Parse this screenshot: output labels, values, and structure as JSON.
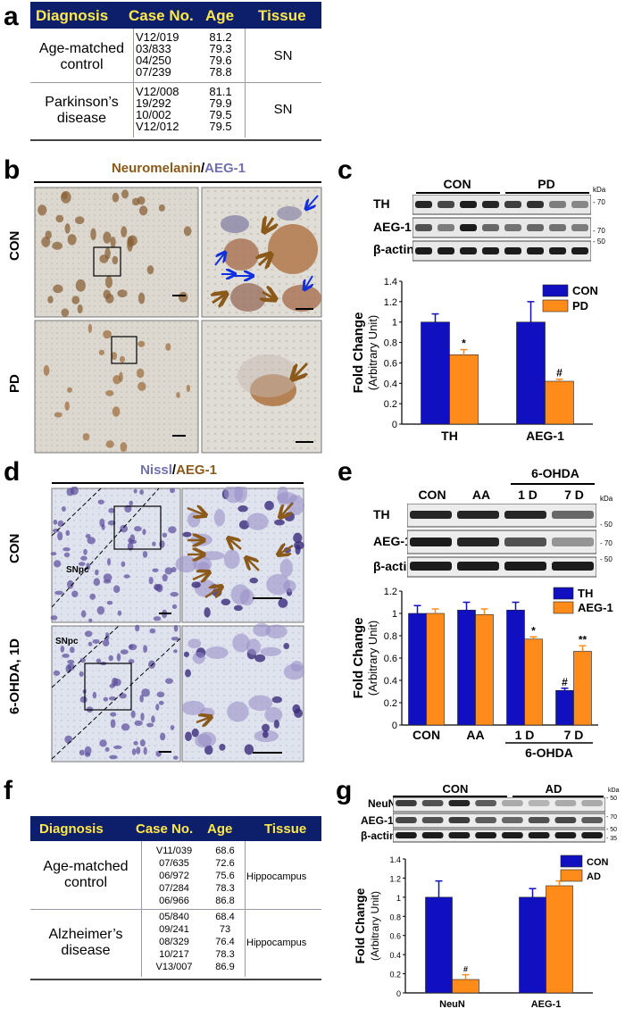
{
  "panels": {
    "a": {
      "label": "a"
    },
    "b": {
      "label": "b",
      "title_part1": "Neuromelanin",
      "title_sep": "/",
      "title_part2": "AEG-1",
      "row_con": "CON",
      "row_pd": "PD"
    },
    "c": {
      "label": "c",
      "group_con": "CON",
      "group_pd": "PD",
      "kda": "kDa",
      "rows": [
        "TH",
        "AEG-1",
        "β-actin"
      ],
      "markers": [
        "70",
        "70",
        "50"
      ]
    },
    "d": {
      "label": "d",
      "title_part1": "Nissl",
      "title_sep": "/",
      "title_part2": "AEG-1",
      "row_con": "CON",
      "row_ohda": "6-OHDA, 1D",
      "snpc": "SNpc"
    },
    "e": {
      "label": "e",
      "lanes": [
        "CON",
        "AA",
        "1 D",
        "7 D"
      ],
      "group_label": "6-OHDA",
      "kda": "kDa",
      "rows": [
        "TH",
        "AEG-1",
        "β-actin"
      ],
      "markers": [
        "50",
        "70",
        "50"
      ]
    },
    "f": {
      "label": "f"
    },
    "g": {
      "label": "g",
      "group_con": "CON",
      "group_ad": "AD",
      "kda": "kDa",
      "rows": [
        "NeuN",
        "AEG-1",
        "β-actin"
      ],
      "markers": [
        "50",
        "70",
        "50",
        "35"
      ]
    }
  },
  "table_a": {
    "headers": [
      "Diagnosis",
      "Case No.",
      "Age",
      "Tissue"
    ],
    "rows": [
      {
        "diagnosis": "Age-matched control",
        "cases": [
          "V12/019",
          "03/833",
          "04/250",
          "07/239"
        ],
        "ages": [
          "81.2",
          "79.3",
          "79.6",
          "78.8"
        ],
        "tissue": "SN"
      },
      {
        "diagnosis": "Parkinson’s disease",
        "cases": [
          "V12/008",
          "19/292",
          "10/002",
          "V12/012"
        ],
        "ages": [
          "81.1",
          "79.9",
          "79.5",
          "79.5"
        ],
        "tissue": "SN"
      }
    ]
  },
  "table_f": {
    "headers": [
      "Diagnosis",
      "Case No.",
      "Age",
      "Tissue"
    ],
    "rows": [
      {
        "diagnosis": "Age-matched control",
        "cases": [
          "V11/039",
          "07/635",
          "06/972",
          "07/284",
          "06/966"
        ],
        "ages": [
          "68.6",
          "72.6",
          "75.6",
          "78.3",
          "86.8"
        ],
        "tissue": "Hippocampus"
      },
      {
        "diagnosis": "Alzheimer’s disease",
        "cases": [
          "05/840",
          "09/241",
          "08/329",
          "10/217",
          "V13/007"
        ],
        "ages": [
          "68.4",
          "73",
          "76.4",
          "78.3",
          "86.9"
        ],
        "tissue": "Hippocampus"
      }
    ]
  },
  "chart_data": [
    {
      "panel": "c",
      "type": "bar",
      "categories": [
        "TH",
        "AEG-1"
      ],
      "series": [
        {
          "name": "CON",
          "values": [
            1.0,
            1.0
          ],
          "errors": [
            0.08,
            0.2
          ],
          "color": "#1010c0"
        },
        {
          "name": "PD",
          "values": [
            0.68,
            0.42
          ],
          "errors": [
            0.05,
            0.02
          ],
          "color": "#ff8c1a"
        }
      ],
      "significance": [
        [
          "",
          "*"
        ],
        [
          "",
          "#"
        ]
      ],
      "ylabel": "Fold Change",
      "ylabel2": "(Arbitrary Unit)",
      "ylim": [
        0,
        1.4
      ],
      "yticks": [
        "0",
        "0.2",
        "0.4",
        "0.6",
        "0.8",
        "1",
        "1.2",
        "1.4"
      ],
      "legend": "top-right"
    },
    {
      "panel": "e",
      "type": "bar",
      "categories": [
        "CON",
        "AA",
        "1 D",
        "7 D"
      ],
      "group_label": "6-OHDA",
      "series": [
        {
          "name": "TH",
          "values": [
            1.0,
            1.03,
            1.03,
            0.31
          ],
          "errors": [
            0.07,
            0.07,
            0.07,
            0.02
          ],
          "color": "#1010c0"
        },
        {
          "name": "AEG-1",
          "values": [
            1.0,
            0.99,
            0.77,
            0.66
          ],
          "errors": [
            0.04,
            0.05,
            0.02,
            0.05
          ],
          "color": "#ff8c1a"
        }
      ],
      "significance": [
        [
          "",
          ""
        ],
        [
          "",
          ""
        ],
        [
          "",
          "*"
        ],
        [
          "#",
          "**"
        ]
      ],
      "ylabel": "Fold Change",
      "ylabel2": "(Arbitrary Unit)",
      "ylim": [
        0,
        1.2
      ],
      "yticks": [
        "0",
        "0.2",
        "0.4",
        "0.6",
        "0.8",
        "1",
        "1.2"
      ],
      "legend": "top-right"
    },
    {
      "panel": "g",
      "type": "bar",
      "categories": [
        "NeuN",
        "AEG-1"
      ],
      "series": [
        {
          "name": "CON",
          "values": [
            1.0,
            1.0
          ],
          "errors": [
            0.17,
            0.09
          ],
          "color": "#1010c0"
        },
        {
          "name": "AD",
          "values": [
            0.14,
            1.12
          ],
          "errors": [
            0.05,
            0.05
          ],
          "color": "#ff8c1a"
        }
      ],
      "significance": [
        [
          "",
          "#"
        ],
        [
          "",
          ""
        ]
      ],
      "ylabel": "Fold Change",
      "ylabel2": "(Arbitrary Unit)",
      "ylim": [
        0,
        1.4
      ],
      "yticks": [
        "0",
        "0.2",
        "0.4",
        "0.6",
        "0.8",
        "1",
        "1.2",
        "1.4"
      ],
      "legend": "top-right"
    }
  ],
  "colors": {
    "header_bg": "#0d1f6a",
    "header_text": "#ffe94a",
    "brown": "#8b5a1a",
    "purple": "#7070b0",
    "blue_arrow": "#1030e0"
  }
}
